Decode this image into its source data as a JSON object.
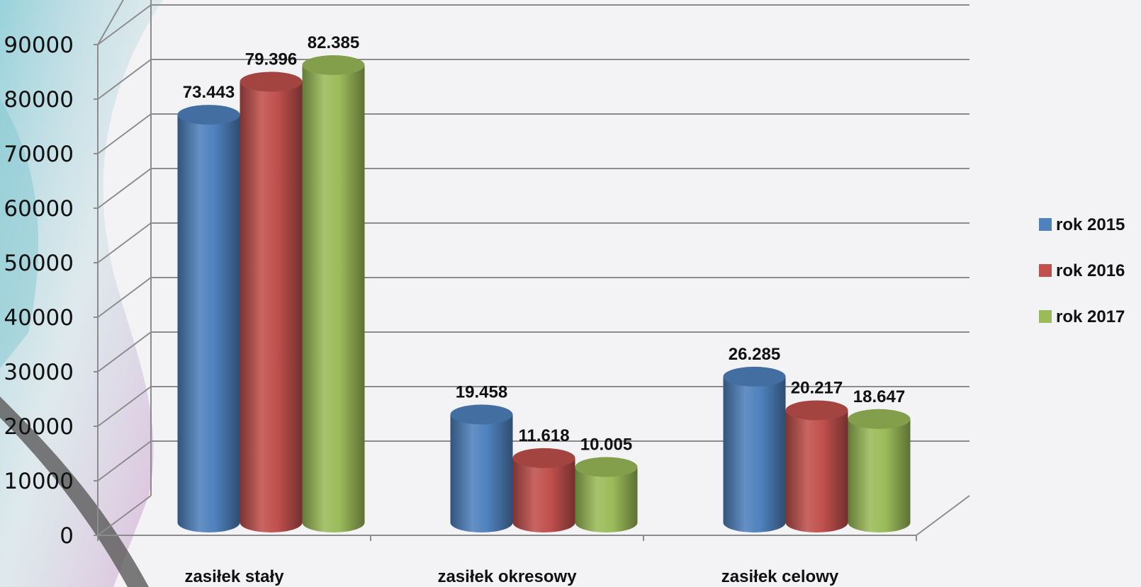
{
  "chart_data": {
    "type": "bar",
    "categories": [
      "zasiłek stały",
      "zasiłek okresowy",
      "zasiłek celowy"
    ],
    "series": [
      {
        "name": "rok 2015",
        "color": "#4f81bd",
        "values": [
          73443,
          19458,
          26285
        ],
        "labels": [
          "73.443",
          "19.458",
          "26.285"
        ]
      },
      {
        "name": "rok 2016",
        "color": "#c0504d",
        "values": [
          79396,
          11618,
          20217
        ],
        "labels": [
          "79.396",
          "11.618",
          "20.217"
        ]
      },
      {
        "name": "rok 2017",
        "color": "#9bbb59",
        "values": [
          82385,
          10005,
          18647
        ],
        "labels": [
          "82.385",
          "10.005",
          "18.647"
        ]
      }
    ],
    "yticks": [
      "0",
      "10000",
      "20000",
      "30000",
      "40000",
      "50000",
      "60000",
      "70000",
      "80000",
      "90000"
    ],
    "ylim": [
      0,
      90000
    ],
    "grid": true,
    "legend_position": "right",
    "style": "3d-cylinder"
  }
}
